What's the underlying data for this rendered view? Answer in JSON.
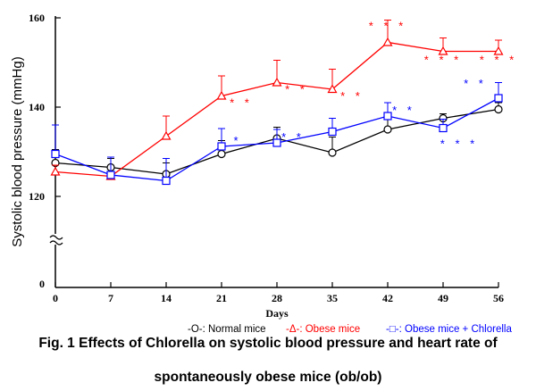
{
  "chart_data": {
    "type": "line",
    "ylabel": "Systolic blood pressure (mmHg)",
    "xlabel": "Days",
    "x": [
      0,
      7,
      14,
      21,
      28,
      35,
      42,
      49,
      56
    ],
    "x_tick_labels": [
      "0",
      "7",
      "14",
      "21",
      "28",
      "35",
      "42",
      "49",
      "56"
    ],
    "y_tick_labels": [
      "160",
      "140",
      "120",
      "0"
    ],
    "ylim": [
      0,
      160
    ],
    "y_axis_break": "between 0 and 120",
    "grid": false,
    "series": [
      {
        "name": "Normal mice",
        "legend_label": "-O-: Normal mice",
        "color": "#000000",
        "marker": "circle",
        "values": [
          127.5,
          126.5,
          125.0,
          129.5,
          133.0,
          129.8,
          135.0,
          137.5,
          139.5
        ],
        "errors": [
          3.0,
          2.0,
          2.5,
          3.0,
          2.5,
          3.5,
          2.5,
          1.0,
          1.5
        ],
        "significance": [
          "",
          "",
          "",
          "",
          "",
          "",
          "",
          "",
          ""
        ]
      },
      {
        "name": "Obese mice",
        "legend_label": "-Δ-: Obese mice",
        "color": "#ff0000",
        "marker": "triangle",
        "values": [
          125.5,
          124.5,
          133.5,
          142.5,
          145.5,
          144.0,
          154.5,
          152.5,
          152.5
        ],
        "errors": [
          1.5,
          1.0,
          4.5,
          4.5,
          5.0,
          4.5,
          5.0,
          3.0,
          2.5
        ],
        "significance": [
          "",
          "",
          "",
          "**",
          "**",
          "**",
          "***",
          "***",
          "***"
        ]
      },
      {
        "name": "Obese mice + Chlorella",
        "legend_label": "-□-: Obese mice + Chlorella",
        "color": "#0000ff",
        "marker": "square",
        "values": [
          129.5,
          124.8,
          123.5,
          131.2,
          132.0,
          134.5,
          138.0,
          135.3,
          142.0
        ],
        "errors": [
          6.5,
          4.0,
          5.0,
          4.0,
          3.0,
          3.0,
          3.0,
          2.0,
          3.5
        ],
        "significance": [
          "",
          "",
          "",
          "*",
          "**",
          "",
          "**",
          "***",
          "**"
        ]
      }
    ]
  },
  "caption": {
    "line1": "Fig. 1 Effects of Chlorella on systolic blood pressure and heart rate of",
    "line2": "spontaneously obese mice (ob/ob)"
  }
}
